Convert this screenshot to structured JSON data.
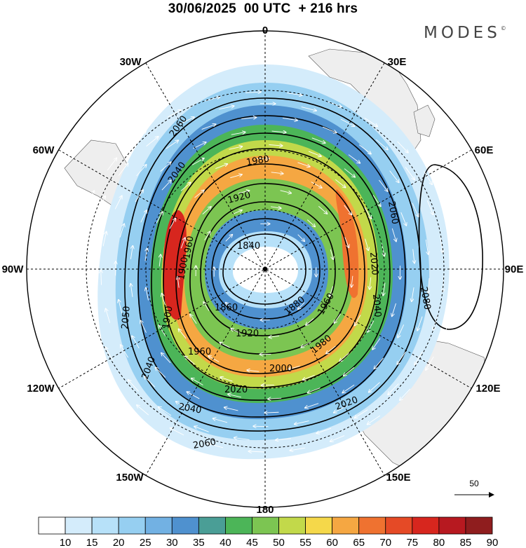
{
  "title": "30/06/2025  00 UTC  + 216 hrs",
  "brand": "MODES",
  "brand_mark": "©",
  "longitude_labels": {
    "top": "0",
    "top_left": "30W",
    "top_right": "30E",
    "upper_left": "60W",
    "upper_right": "60E",
    "left": "90W",
    "right": "90E",
    "lower_left": "120W",
    "lower_right": "120E",
    "bottom_left": "150W",
    "bottom_right": "150E",
    "bottom": "180"
  },
  "contour_labels": [
    "2060",
    "2040",
    "1980",
    "1920",
    "1860",
    "1840",
    "1880",
    "1900",
    "1960",
    "1980",
    "2000",
    "2020",
    "2040",
    "2060",
    "2080",
    "2050",
    "2040",
    "1960",
    "2020",
    "1900",
    "1960",
    "2060",
    "2040",
    "2020",
    "1920"
  ],
  "wind_colorbar": {
    "colors": [
      "#ffffff",
      "#d4ecfb",
      "#b7e1f9",
      "#96cff1",
      "#72b1e3",
      "#4f91cf",
      "#4a9e96",
      "#4cb558",
      "#7cc552",
      "#c2d94a",
      "#f5d84a",
      "#f5a742",
      "#ef7230",
      "#e54a26",
      "#d7261e",
      "#b71920",
      "#8f1d1e"
    ],
    "labels": [
      "10",
      "15",
      "20",
      "25",
      "30",
      "35",
      "40",
      "45",
      "50",
      "55",
      "60",
      "65",
      "70",
      "75",
      "80",
      "85",
      "90"
    ]
  },
  "vector_reference": {
    "label": "50"
  }
}
